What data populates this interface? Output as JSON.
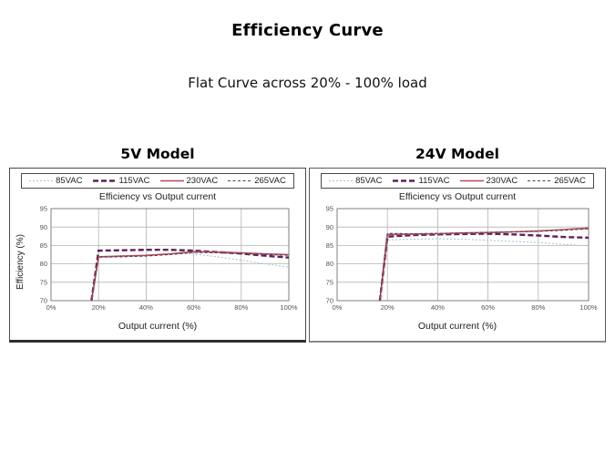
{
  "page": {
    "title": "Efficiency Curve",
    "subtitle": "Flat Curve across 20% - 100% load"
  },
  "colors": {
    "grid": "#b3b3b3",
    "axis_frame": "#7f7f7f",
    "tick_text": "#555555"
  },
  "chart_data": [
    {
      "type": "line",
      "heading": "5V Model",
      "title": "Efficiency vs Output current",
      "xlabel": "Output current (%)",
      "ylabel": "Efficiency (%)",
      "xlim": [
        0,
        100
      ],
      "ylim": [
        70,
        95
      ],
      "xticks": [
        0,
        20,
        40,
        60,
        80,
        100
      ],
      "xtick_labels": [
        "0%",
        "20%",
        "40%",
        "60%",
        "80%",
        "100%"
      ],
      "yticks": [
        70,
        75,
        80,
        85,
        90,
        95
      ],
      "grid": true,
      "legend_position": "top",
      "series": [
        {
          "name": "85VAC",
          "color": "#a3c2d4",
          "dash": "2 2",
          "width": 1,
          "x": [
            17,
            20,
            30,
            40,
            50,
            57,
            60,
            70,
            80,
            90,
            100
          ],
          "y": [
            70,
            82.0,
            82.2,
            82.4,
            82.6,
            82.8,
            82.7,
            81.9,
            81.0,
            80.0,
            79.1
          ]
        },
        {
          "name": "115VAC",
          "color": "#5e2257",
          "dash": "6 3",
          "width": 2.4,
          "x": [
            17,
            20,
            30,
            40,
            50,
            60,
            70,
            80,
            90,
            100
          ],
          "y": [
            70,
            83.6,
            83.7,
            83.8,
            83.8,
            83.6,
            83.2,
            82.8,
            82.2,
            81.7
          ]
        },
        {
          "name": "230VAC",
          "color": "#b2495a",
          "dash": "",
          "width": 1.6,
          "x": [
            17,
            20,
            30,
            40,
            50,
            60,
            70,
            80,
            90,
            100
          ],
          "y": [
            70,
            81.9,
            82.1,
            82.3,
            82.7,
            83.3,
            83.2,
            83.0,
            82.7,
            82.5
          ]
        },
        {
          "name": "265VAC",
          "color": "#4f4150",
          "dash": "3 2.5",
          "width": 1,
          "x": [
            17,
            20,
            30,
            40,
            50,
            60,
            70,
            80,
            90,
            100
          ],
          "y": [
            70,
            81.8,
            81.9,
            82.1,
            82.5,
            83.1,
            83.0,
            82.8,
            82.6,
            82.3
          ]
        }
      ]
    },
    {
      "type": "line",
      "heading": "24V Model",
      "title": "Efficiency vs Output current",
      "xlabel": "Output current (%)",
      "ylabel": "",
      "xlim": [
        0,
        100
      ],
      "ylim": [
        70,
        95
      ],
      "xticks": [
        0,
        20,
        40,
        60,
        80,
        100
      ],
      "xtick_labels": [
        "0%",
        "20%",
        "40%",
        "60%",
        "80%",
        "100%"
      ],
      "yticks": [
        70,
        75,
        80,
        85,
        90,
        95
      ],
      "grid": true,
      "legend_position": "top",
      "series": [
        {
          "name": "85VAC",
          "color": "#a3c2d4",
          "dash": "2 2",
          "width": 1,
          "x": [
            17,
            20,
            30,
            40,
            50,
            60,
            70,
            80,
            90,
            100
          ],
          "y": [
            70,
            86.5,
            86.7,
            86.8,
            86.7,
            86.4,
            86.1,
            85.8,
            85.3,
            84.9
          ]
        },
        {
          "name": "115VAC",
          "color": "#5e2257",
          "dash": "6 3",
          "width": 2.4,
          "x": [
            17,
            20,
            30,
            40,
            50,
            60,
            70,
            80,
            90,
            100
          ],
          "y": [
            70,
            87.4,
            87.8,
            88.0,
            88.1,
            88.2,
            88.0,
            87.7,
            87.3,
            87.1
          ]
        },
        {
          "name": "230VAC",
          "color": "#b2495a",
          "dash": "",
          "width": 1.6,
          "x": [
            17,
            20,
            30,
            40,
            50,
            60,
            70,
            80,
            90,
            100
          ],
          "y": [
            70,
            88.0,
            88.1,
            88.2,
            88.4,
            88.5,
            88.7,
            88.9,
            89.3,
            89.7
          ]
        },
        {
          "name": "265VAC",
          "color": "#4f4150",
          "dash": "3 2.5",
          "width": 1,
          "x": [
            17,
            20,
            30,
            40,
            50,
            60,
            70,
            80,
            90,
            100
          ],
          "y": [
            70,
            88.3,
            88.2,
            88.3,
            88.4,
            88.6,
            88.7,
            88.8,
            89.1,
            89.5
          ]
        }
      ]
    }
  ]
}
